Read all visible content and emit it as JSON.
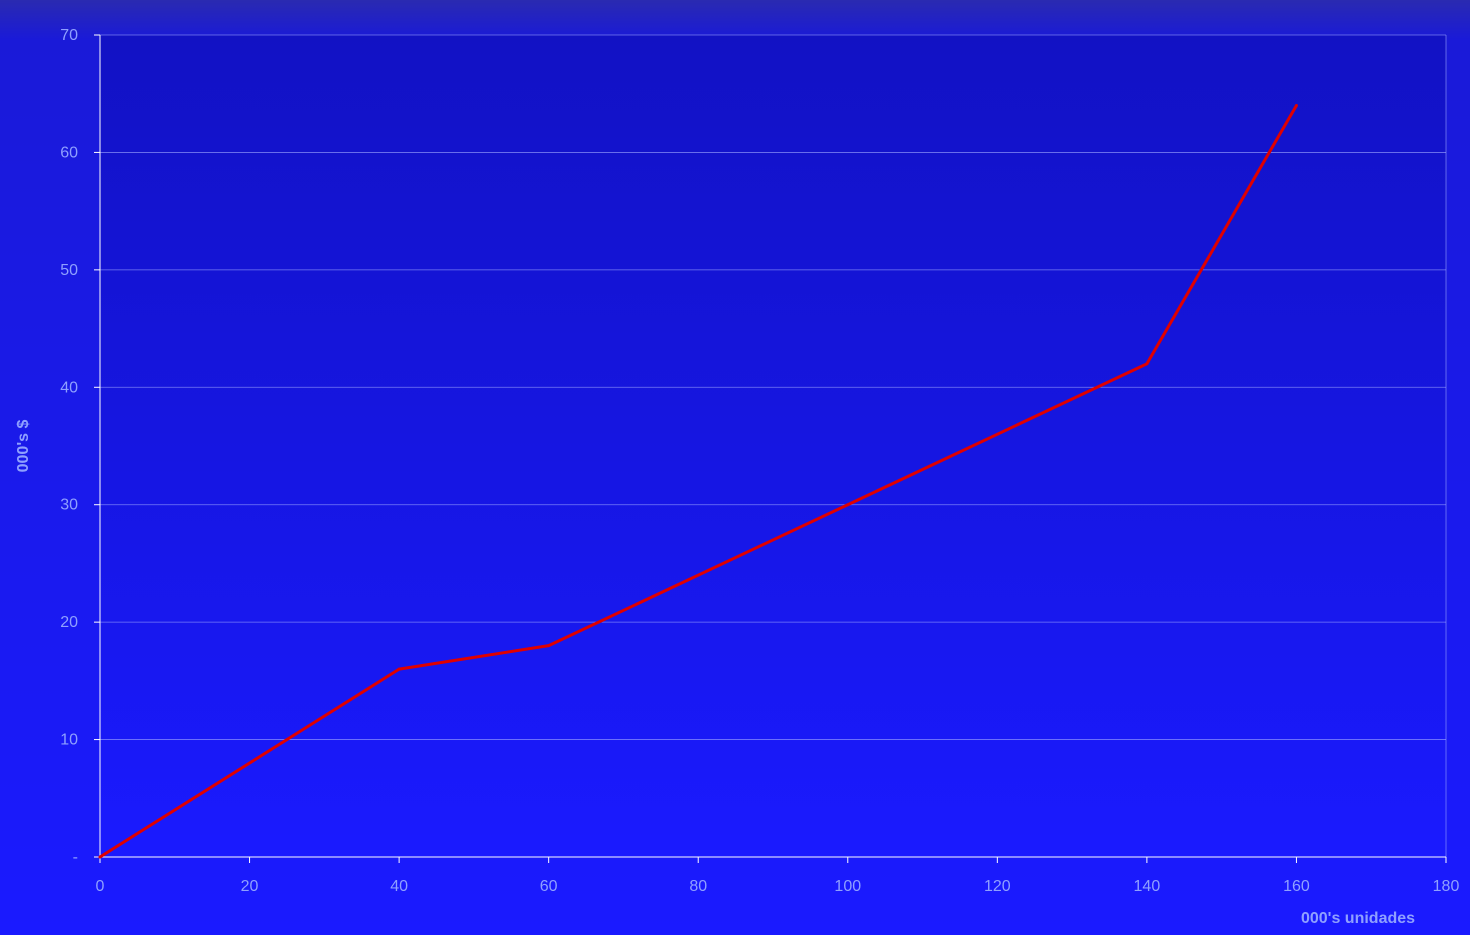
{
  "chart_data": {
    "type": "line",
    "title": "",
    "xlabel": "000's unidades",
    "ylabel": "000's $",
    "xlim": [
      0,
      180
    ],
    "ylim": [
      0,
      70
    ],
    "x_ticks": [
      0,
      20,
      40,
      60,
      80,
      100,
      120,
      140,
      160,
      180
    ],
    "x_tick_labels": [
      "0",
      "20",
      "40",
      "60",
      "80",
      "100",
      "120",
      "140",
      "160",
      "180"
    ],
    "y_ticks": [
      0,
      10,
      20,
      30,
      40,
      50,
      60,
      70
    ],
    "y_tick_labels": [
      "-",
      "10",
      "20",
      "30",
      "40",
      "50",
      "60",
      "70"
    ],
    "grid": "horizontal",
    "legend": "none",
    "series": [
      {
        "color": "#e00000",
        "points": [
          {
            "x": 0,
            "y": 0
          },
          {
            "x": 40,
            "y": 16
          },
          {
            "x": 60,
            "y": 18
          },
          {
            "x": 100,
            "y": 30
          },
          {
            "x": 140,
            "y": 42
          },
          {
            "x": 160,
            "y": 64
          }
        ]
      }
    ],
    "colors": {
      "background": "#1a1aff",
      "plot_background": "#1616f0",
      "grid": "#a0a8ff",
      "axis": "#ffffff",
      "text": "#8fa0ff",
      "line": "#e00000"
    }
  }
}
